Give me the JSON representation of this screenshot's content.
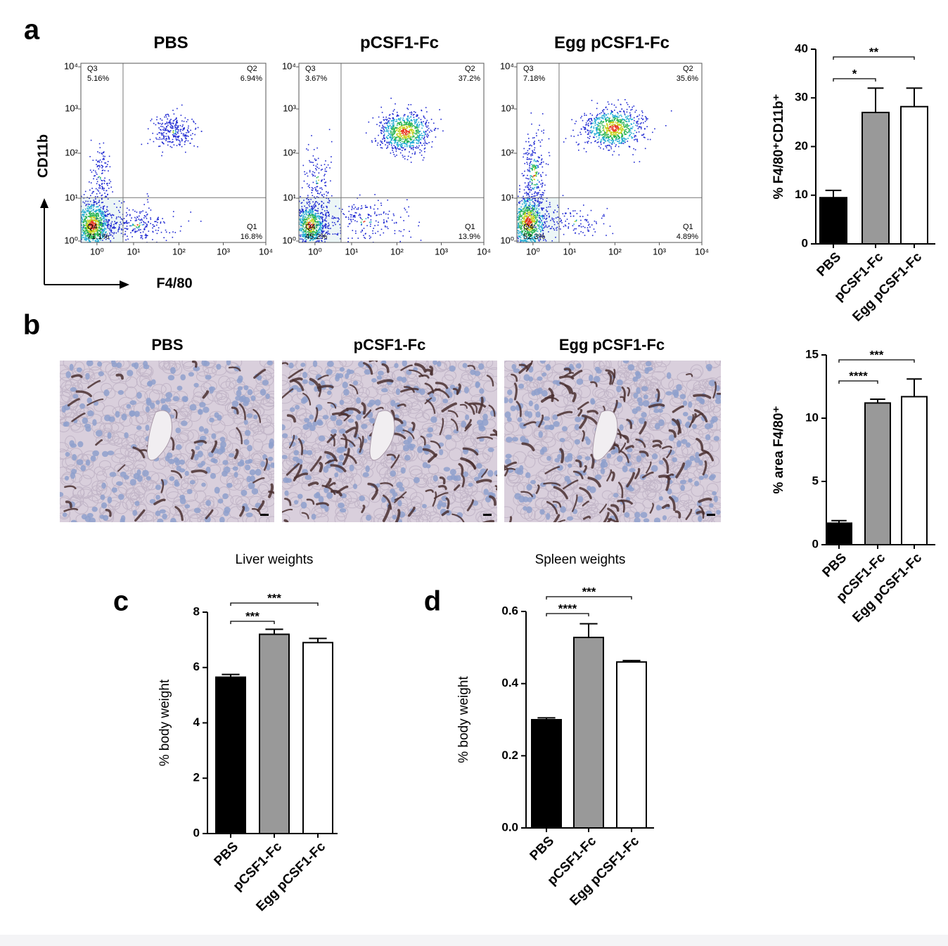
{
  "panel_labels": [
    "a",
    "b",
    "c",
    "d"
  ],
  "flow": {
    "x_label": "F4/80",
    "y_label": "CD11b",
    "ticks": [
      "10⁰",
      "10¹",
      "10²",
      "10³",
      "10⁴"
    ],
    "plots": [
      {
        "title": "PBS",
        "quadrants": [
          {
            "name": "Q3",
            "value": "5.16%"
          },
          {
            "name": "Q2",
            "value": "6.94%"
          },
          {
            "name": "Q4",
            "value": "71.1%"
          },
          {
            "name": "Q1",
            "value": "16.8%"
          }
        ]
      },
      {
        "title": "pCSF1-Fc",
        "quadrants": [
          {
            "name": "Q3",
            "value": "3.67%"
          },
          {
            "name": "Q2",
            "value": "37.2%"
          },
          {
            "name": "Q4",
            "value": "45.2%"
          },
          {
            "name": "Q1",
            "value": "13.9%"
          }
        ]
      },
      {
        "title": "Egg pCSF1-Fc",
        "quadrants": [
          {
            "name": "Q3",
            "value": "7.18%"
          },
          {
            "name": "Q2",
            "value": "35.6%"
          },
          {
            "name": "Q4",
            "value": "52.3%"
          },
          {
            "name": "Q1",
            "value": "4.89%"
          }
        ]
      }
    ]
  },
  "histology": {
    "titles": [
      "PBS",
      "pCSF1-Fc",
      "Egg pCSF1-Fc"
    ]
  },
  "chart_data": [
    {
      "type": "bar",
      "y_label": "% F4/80⁺CD11b⁺",
      "categories": [
        "PBS",
        "pCSF1-Fc",
        "Egg pCSF1-Fc"
      ],
      "values": [
        9.5,
        27,
        28.2
      ],
      "errors": [
        1.5,
        5,
        3.8
      ],
      "colors": [
        "#000000",
        "#999999",
        "#ffffff"
      ],
      "ylim": [
        0,
        40
      ],
      "yticks": [
        0,
        10,
        20,
        30,
        40
      ],
      "significance": [
        {
          "from": "PBS",
          "to": "pCSF1-Fc",
          "label": "*"
        },
        {
          "from": "PBS",
          "to": "Egg pCSF1-Fc",
          "label": "**"
        }
      ]
    },
    {
      "type": "bar",
      "y_label": "% area F4/80⁺",
      "categories": [
        "PBS",
        "pCSF1-Fc",
        "Egg pCSF1-Fc"
      ],
      "values": [
        1.7,
        11.2,
        11.7
      ],
      "errors": [
        0.2,
        0.3,
        1.4
      ],
      "colors": [
        "#000000",
        "#999999",
        "#ffffff"
      ],
      "ylim": [
        0,
        15
      ],
      "yticks": [
        0,
        5,
        10,
        15
      ],
      "significance": [
        {
          "from": "PBS",
          "to": "pCSF1-Fc",
          "label": "****"
        },
        {
          "from": "PBS",
          "to": "Egg pCSF1-Fc",
          "label": "***"
        }
      ]
    },
    {
      "type": "bar",
      "title": "Liver weights",
      "y_label": "% body weight",
      "categories": [
        "PBS",
        "pCSF1-Fc",
        "Egg pCSF1-Fc"
      ],
      "values": [
        5.65,
        7.2,
        6.9
      ],
      "errors": [
        0.1,
        0.18,
        0.15
      ],
      "colors": [
        "#000000",
        "#999999",
        "#ffffff"
      ],
      "ylim": [
        0,
        8
      ],
      "yticks": [
        0,
        2,
        4,
        6,
        8
      ],
      "significance": [
        {
          "from": "PBS",
          "to": "pCSF1-Fc",
          "label": "***"
        },
        {
          "from": "PBS",
          "to": "Egg pCSF1-Fc",
          "label": "***"
        }
      ]
    },
    {
      "type": "bar",
      "title": "Spleen weights",
      "y_label": "% body weight",
      "categories": [
        "PBS",
        "pCSF1-Fc",
        "Egg pCSF1-Fc"
      ],
      "values": [
        0.3,
        0.528,
        0.46
      ],
      "errors": [
        0.005,
        0.038,
        0.004
      ],
      "colors": [
        "#000000",
        "#999999",
        "#ffffff"
      ],
      "ylim": [
        0,
        0.6
      ],
      "yticks": [
        {
          "value": 0,
          "label": "0.0"
        },
        0.2,
        0.4,
        0.6
      ],
      "significance": [
        {
          "from": "PBS",
          "to": "pCSF1-Fc",
          "label": "****"
        },
        {
          "from": "PBS",
          "to": "Egg pCSF1-Fc",
          "label": "***"
        }
      ]
    }
  ]
}
